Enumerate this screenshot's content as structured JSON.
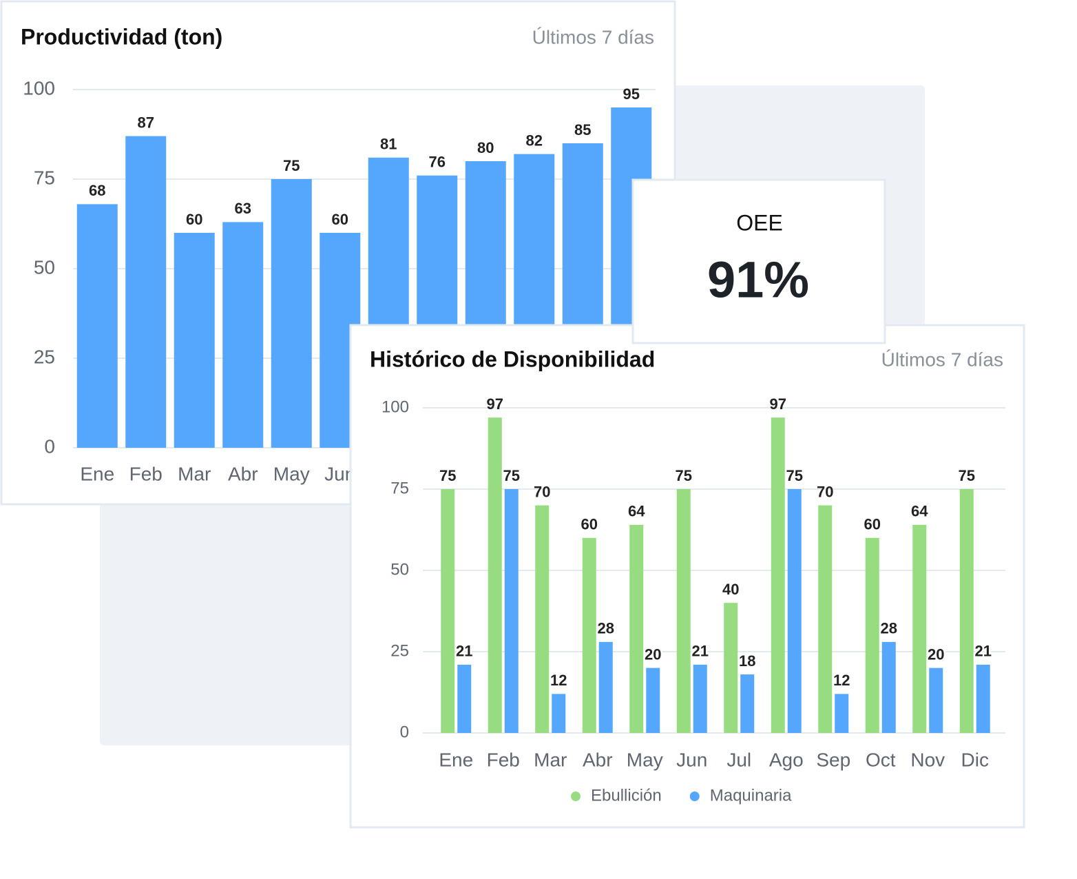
{
  "chart_data": [
    {
      "type": "bar",
      "title": "Productividad (ton)",
      "subtitle": "Últimos 7 días",
      "categories": [
        "Ene",
        "Feb",
        "Mar",
        "Abr",
        "May",
        "Jun",
        null,
        null,
        null,
        null,
        null,
        null
      ],
      "values": [
        68,
        87,
        60,
        63,
        75,
        60,
        81,
        76,
        80,
        82,
        85,
        95
      ],
      "color": "#55a6fd",
      "ylim": [
        0,
        100
      ],
      "yticks": [
        0,
        25,
        50,
        75,
        100
      ],
      "grid": true
    },
    {
      "type": "grouped-bar",
      "title": "Histórico de Disponibilidad",
      "subtitle": "Últimos 7 días",
      "categories": [
        "Ene",
        "Feb",
        "Mar",
        "Abr",
        "May",
        "Jun",
        "Jul",
        "Ago",
        "Sep",
        "Oct",
        "Nov",
        "Dic"
      ],
      "series": [
        {
          "name": "Ebullición",
          "color": "#97dc80",
          "values": [
            75,
            97,
            70,
            60,
            64,
            75,
            40,
            97,
            70,
            60,
            64,
            75
          ]
        },
        {
          "name": "Maquinaria",
          "color": "#55a6fd",
          "values": [
            21,
            75,
            12,
            28,
            20,
            21,
            18,
            75,
            12,
            28,
            20,
            21
          ]
        }
      ],
      "ylim": [
        0,
        100
      ],
      "yticks": [
        0,
        25,
        50,
        75,
        100
      ],
      "grid": true,
      "legend": "bottom"
    }
  ],
  "oee_card": {
    "title": "OEE",
    "value": "91%"
  }
}
